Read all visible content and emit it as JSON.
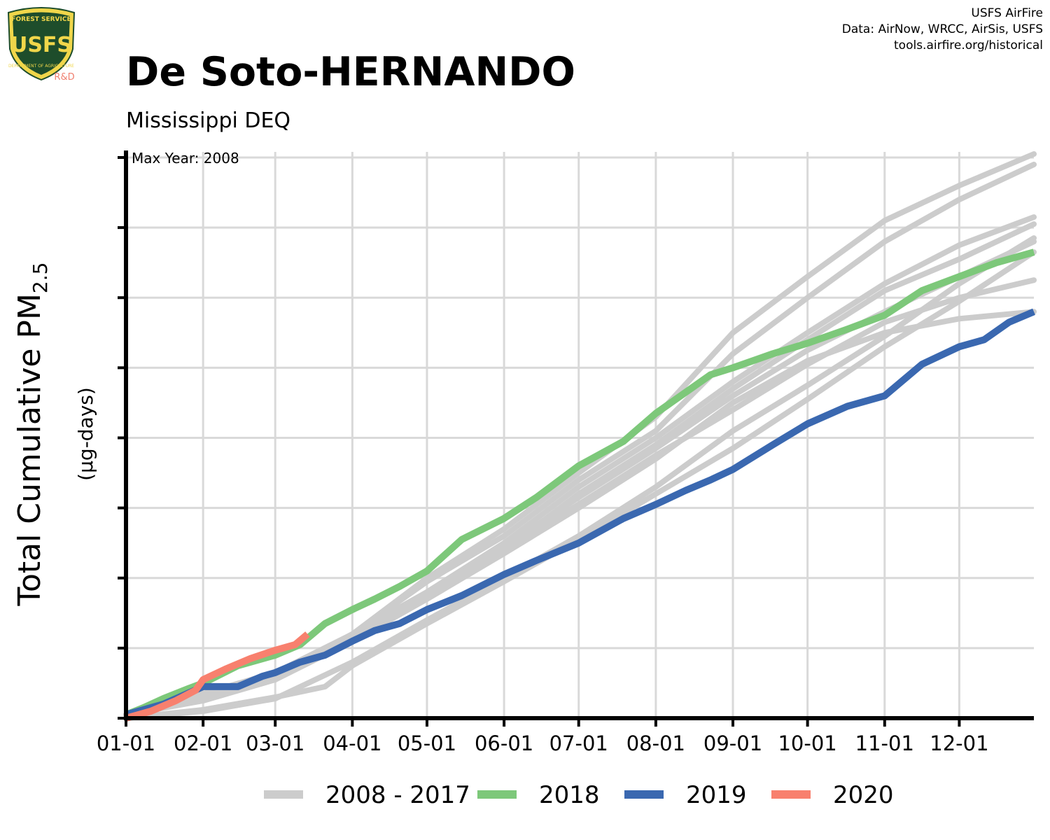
{
  "header": {
    "title": "De Soto-HERNANDO",
    "subtitle": "Mississippi DEQ",
    "credits": [
      "USFS AirFire",
      "Data: AirNow, WRCC, AirSis, USFS",
      "tools.airfire.org/historical"
    ]
  },
  "logo": {
    "text_top": "FOREST SERVICE",
    "text_main": "USFS",
    "text_bottom": "DEPARTMENT OF AGRICULTURE",
    "badge": "R&D",
    "colors": {
      "shield": "#1e4d2b",
      "gold": "#f0d64a",
      "badge": "#f08070"
    }
  },
  "chart_data": {
    "type": "line",
    "title": "De Soto-HERNANDO",
    "subtitle": "Mississippi DEQ",
    "ylabel": "Total Cumulative PM",
    "ylabel_sub": "2.5",
    "ylabel_units": "(µg-days)",
    "xlabel": "",
    "annotation": "Max Year: 2008",
    "xlim": [
      0,
      365
    ],
    "ylim": [
      0,
      8
    ],
    "x_ticks": [
      {
        "day": 0,
        "label": "01-01"
      },
      {
        "day": 31,
        "label": "02-01"
      },
      {
        "day": 60,
        "label": "03-01"
      },
      {
        "day": 91,
        "label": "04-01"
      },
      {
        "day": 121,
        "label": "05-01"
      },
      {
        "day": 152,
        "label": "06-01"
      },
      {
        "day": 182,
        "label": "07-01"
      },
      {
        "day": 213,
        "label": "08-01"
      },
      {
        "day": 244,
        "label": "09-01"
      },
      {
        "day": 274,
        "label": "10-01"
      },
      {
        "day": 305,
        "label": "11-01"
      },
      {
        "day": 335,
        "label": "12-01"
      }
    ],
    "y_ticks": [
      0,
      1,
      2,
      3,
      4,
      5,
      6,
      7,
      8
    ],
    "y_tick_labels_shown": false,
    "grid": true,
    "legend": {
      "placement": "bottom",
      "entries": [
        {
          "label": "2008 - 2017",
          "color": "#cccccc"
        },
        {
          "label": "2018",
          "color": "#7dc87a"
        },
        {
          "label": "2019",
          "color": "#3a68b0"
        },
        {
          "label": "2020",
          "color": "#f8806e"
        }
      ]
    },
    "series": [
      {
        "group": "2008 - 2017",
        "color": "#cccccc",
        "points": [
          [
            0,
            0
          ],
          [
            31,
            0.12
          ],
          [
            60,
            0.3
          ],
          [
            80,
            0.45
          ],
          [
            91,
            0.75
          ],
          [
            121,
            1.35
          ],
          [
            152,
            1.95
          ],
          [
            182,
            2.55
          ],
          [
            213,
            3.2
          ],
          [
            244,
            3.85
          ],
          [
            274,
            4.55
          ],
          [
            305,
            5.3
          ],
          [
            335,
            5.95
          ],
          [
            365,
            6.65
          ]
        ]
      },
      {
        "group": "2008 - 2017",
        "color": "#cccccc",
        "points": [
          [
            0,
            0
          ],
          [
            31,
            0.1
          ],
          [
            60,
            0.28
          ],
          [
            91,
            0.8
          ],
          [
            121,
            1.4
          ],
          [
            152,
            2.0
          ],
          [
            182,
            2.6
          ],
          [
            213,
            3.3
          ],
          [
            244,
            4.1
          ],
          [
            274,
            4.75
          ],
          [
            305,
            5.45
          ],
          [
            335,
            6.2
          ],
          [
            365,
            6.85
          ]
        ]
      },
      {
        "group": "2008 - 2017",
        "color": "#cccccc",
        "points": [
          [
            0,
            0.05
          ],
          [
            31,
            0.3
          ],
          [
            60,
            0.55
          ],
          [
            91,
            1.2
          ],
          [
            121,
            2.0
          ],
          [
            152,
            2.7
          ],
          [
            182,
            3.5
          ],
          [
            213,
            4.3
          ],
          [
            244,
            5.5
          ],
          [
            274,
            6.3
          ],
          [
            305,
            7.1
          ],
          [
            335,
            7.6
          ],
          [
            365,
            8.05
          ]
        ]
      },
      {
        "group": "2008 - 2017",
        "color": "#cccccc",
        "points": [
          [
            0,
            0.05
          ],
          [
            31,
            0.35
          ],
          [
            60,
            0.65
          ],
          [
            91,
            1.2
          ],
          [
            121,
            1.95
          ],
          [
            152,
            2.6
          ],
          [
            182,
            3.4
          ],
          [
            213,
            4.1
          ],
          [
            244,
            5.2
          ],
          [
            274,
            6.0
          ],
          [
            305,
            6.8
          ],
          [
            335,
            7.4
          ],
          [
            365,
            7.9
          ]
        ]
      },
      {
        "group": "2008 - 2017",
        "color": "#cccccc",
        "points": [
          [
            0,
            0.05
          ],
          [
            31,
            0.35
          ],
          [
            60,
            0.6
          ],
          [
            91,
            1.15
          ],
          [
            121,
            1.75
          ],
          [
            152,
            2.4
          ],
          [
            182,
            3.2
          ],
          [
            213,
            3.9
          ],
          [
            244,
            4.7
          ],
          [
            274,
            5.4
          ],
          [
            305,
            6.1
          ],
          [
            335,
            6.55
          ],
          [
            365,
            7.05
          ]
        ]
      },
      {
        "group": "2008 - 2017",
        "color": "#cccccc",
        "points": [
          [
            0,
            0.05
          ],
          [
            31,
            0.3
          ],
          [
            60,
            0.6
          ],
          [
            91,
            1.2
          ],
          [
            121,
            1.8
          ],
          [
            152,
            2.5
          ],
          [
            182,
            3.3
          ],
          [
            213,
            4.0
          ],
          [
            244,
            4.8
          ],
          [
            274,
            5.5
          ],
          [
            305,
            6.2
          ],
          [
            335,
            6.75
          ],
          [
            365,
            7.15
          ]
        ]
      },
      {
        "group": "2008 - 2017",
        "color": "#cccccc",
        "points": [
          [
            0,
            0.05
          ],
          [
            31,
            0.3
          ],
          [
            60,
            0.6
          ],
          [
            91,
            1.2
          ],
          [
            121,
            1.8
          ],
          [
            152,
            2.4
          ],
          [
            182,
            3.05
          ],
          [
            213,
            3.75
          ],
          [
            244,
            4.4
          ],
          [
            274,
            5.05
          ],
          [
            305,
            5.65
          ],
          [
            335,
            6.0
          ],
          [
            365,
            6.25
          ]
        ]
      },
      {
        "group": "2008 - 2017",
        "color": "#cccccc",
        "points": [
          [
            0,
            0.05
          ],
          [
            31,
            0.25
          ],
          [
            60,
            0.55
          ],
          [
            91,
            1.1
          ],
          [
            121,
            1.7
          ],
          [
            152,
            2.35
          ],
          [
            182,
            3.0
          ],
          [
            213,
            3.7
          ],
          [
            244,
            4.5
          ],
          [
            274,
            5.1
          ],
          [
            305,
            5.5
          ],
          [
            335,
            5.7
          ],
          [
            365,
            5.8
          ]
        ]
      },
      {
        "group": "2008 - 2017",
        "color": "#cccccc",
        "points": [
          [
            0,
            0.05
          ],
          [
            31,
            0.28
          ],
          [
            60,
            0.58
          ],
          [
            91,
            1.15
          ],
          [
            121,
            1.75
          ],
          [
            152,
            2.45
          ],
          [
            182,
            3.15
          ],
          [
            213,
            3.85
          ],
          [
            244,
            4.6
          ],
          [
            274,
            5.25
          ],
          [
            305,
            5.8
          ],
          [
            335,
            6.3
          ],
          [
            365,
            6.8
          ]
        ]
      }
    ],
    "highlight_series": [
      {
        "name": "2018",
        "color": "#7dc87a",
        "points": [
          [
            0,
            0.05
          ],
          [
            7,
            0.15
          ],
          [
            15,
            0.28
          ],
          [
            25,
            0.42
          ],
          [
            31,
            0.5
          ],
          [
            45,
            0.75
          ],
          [
            60,
            0.9
          ],
          [
            70,
            1.05
          ],
          [
            80,
            1.35
          ],
          [
            91,
            1.55
          ],
          [
            100,
            1.7
          ],
          [
            110,
            1.88
          ],
          [
            121,
            2.1
          ],
          [
            135,
            2.55
          ],
          [
            152,
            2.85
          ],
          [
            165,
            3.15
          ],
          [
            182,
            3.6
          ],
          [
            200,
            3.95
          ],
          [
            213,
            4.35
          ],
          [
            225,
            4.65
          ],
          [
            235,
            4.9
          ],
          [
            244,
            5.0
          ],
          [
            260,
            5.2
          ],
          [
            274,
            5.35
          ],
          [
            290,
            5.55
          ],
          [
            305,
            5.75
          ],
          [
            320,
            6.1
          ],
          [
            335,
            6.3
          ],
          [
            350,
            6.5
          ],
          [
            365,
            6.65
          ]
        ]
      },
      {
        "name": "2019",
        "color": "#3a68b0",
        "points": [
          [
            0,
            0.05
          ],
          [
            15,
            0.2
          ],
          [
            31,
            0.45
          ],
          [
            45,
            0.45
          ],
          [
            55,
            0.6
          ],
          [
            60,
            0.65
          ],
          [
            70,
            0.8
          ],
          [
            80,
            0.9
          ],
          [
            91,
            1.1
          ],
          [
            100,
            1.25
          ],
          [
            110,
            1.35
          ],
          [
            121,
            1.55
          ],
          [
            135,
            1.75
          ],
          [
            152,
            2.05
          ],
          [
            165,
            2.25
          ],
          [
            182,
            2.5
          ],
          [
            200,
            2.85
          ],
          [
            213,
            3.05
          ],
          [
            225,
            3.25
          ],
          [
            235,
            3.4
          ],
          [
            244,
            3.55
          ],
          [
            260,
            3.9
          ],
          [
            274,
            4.2
          ],
          [
            290,
            4.45
          ],
          [
            305,
            4.6
          ],
          [
            320,
            5.05
          ],
          [
            335,
            5.3
          ],
          [
            345,
            5.4
          ],
          [
            355,
            5.65
          ],
          [
            365,
            5.8
          ]
        ]
      },
      {
        "name": "2020",
        "color": "#f8806e",
        "points": [
          [
            0,
            0.0
          ],
          [
            10,
            0.1
          ],
          [
            20,
            0.25
          ],
          [
            28,
            0.4
          ],
          [
            31,
            0.55
          ],
          [
            40,
            0.7
          ],
          [
            50,
            0.85
          ],
          [
            60,
            0.97
          ],
          [
            68,
            1.05
          ],
          [
            73,
            1.2
          ]
        ]
      }
    ]
  }
}
